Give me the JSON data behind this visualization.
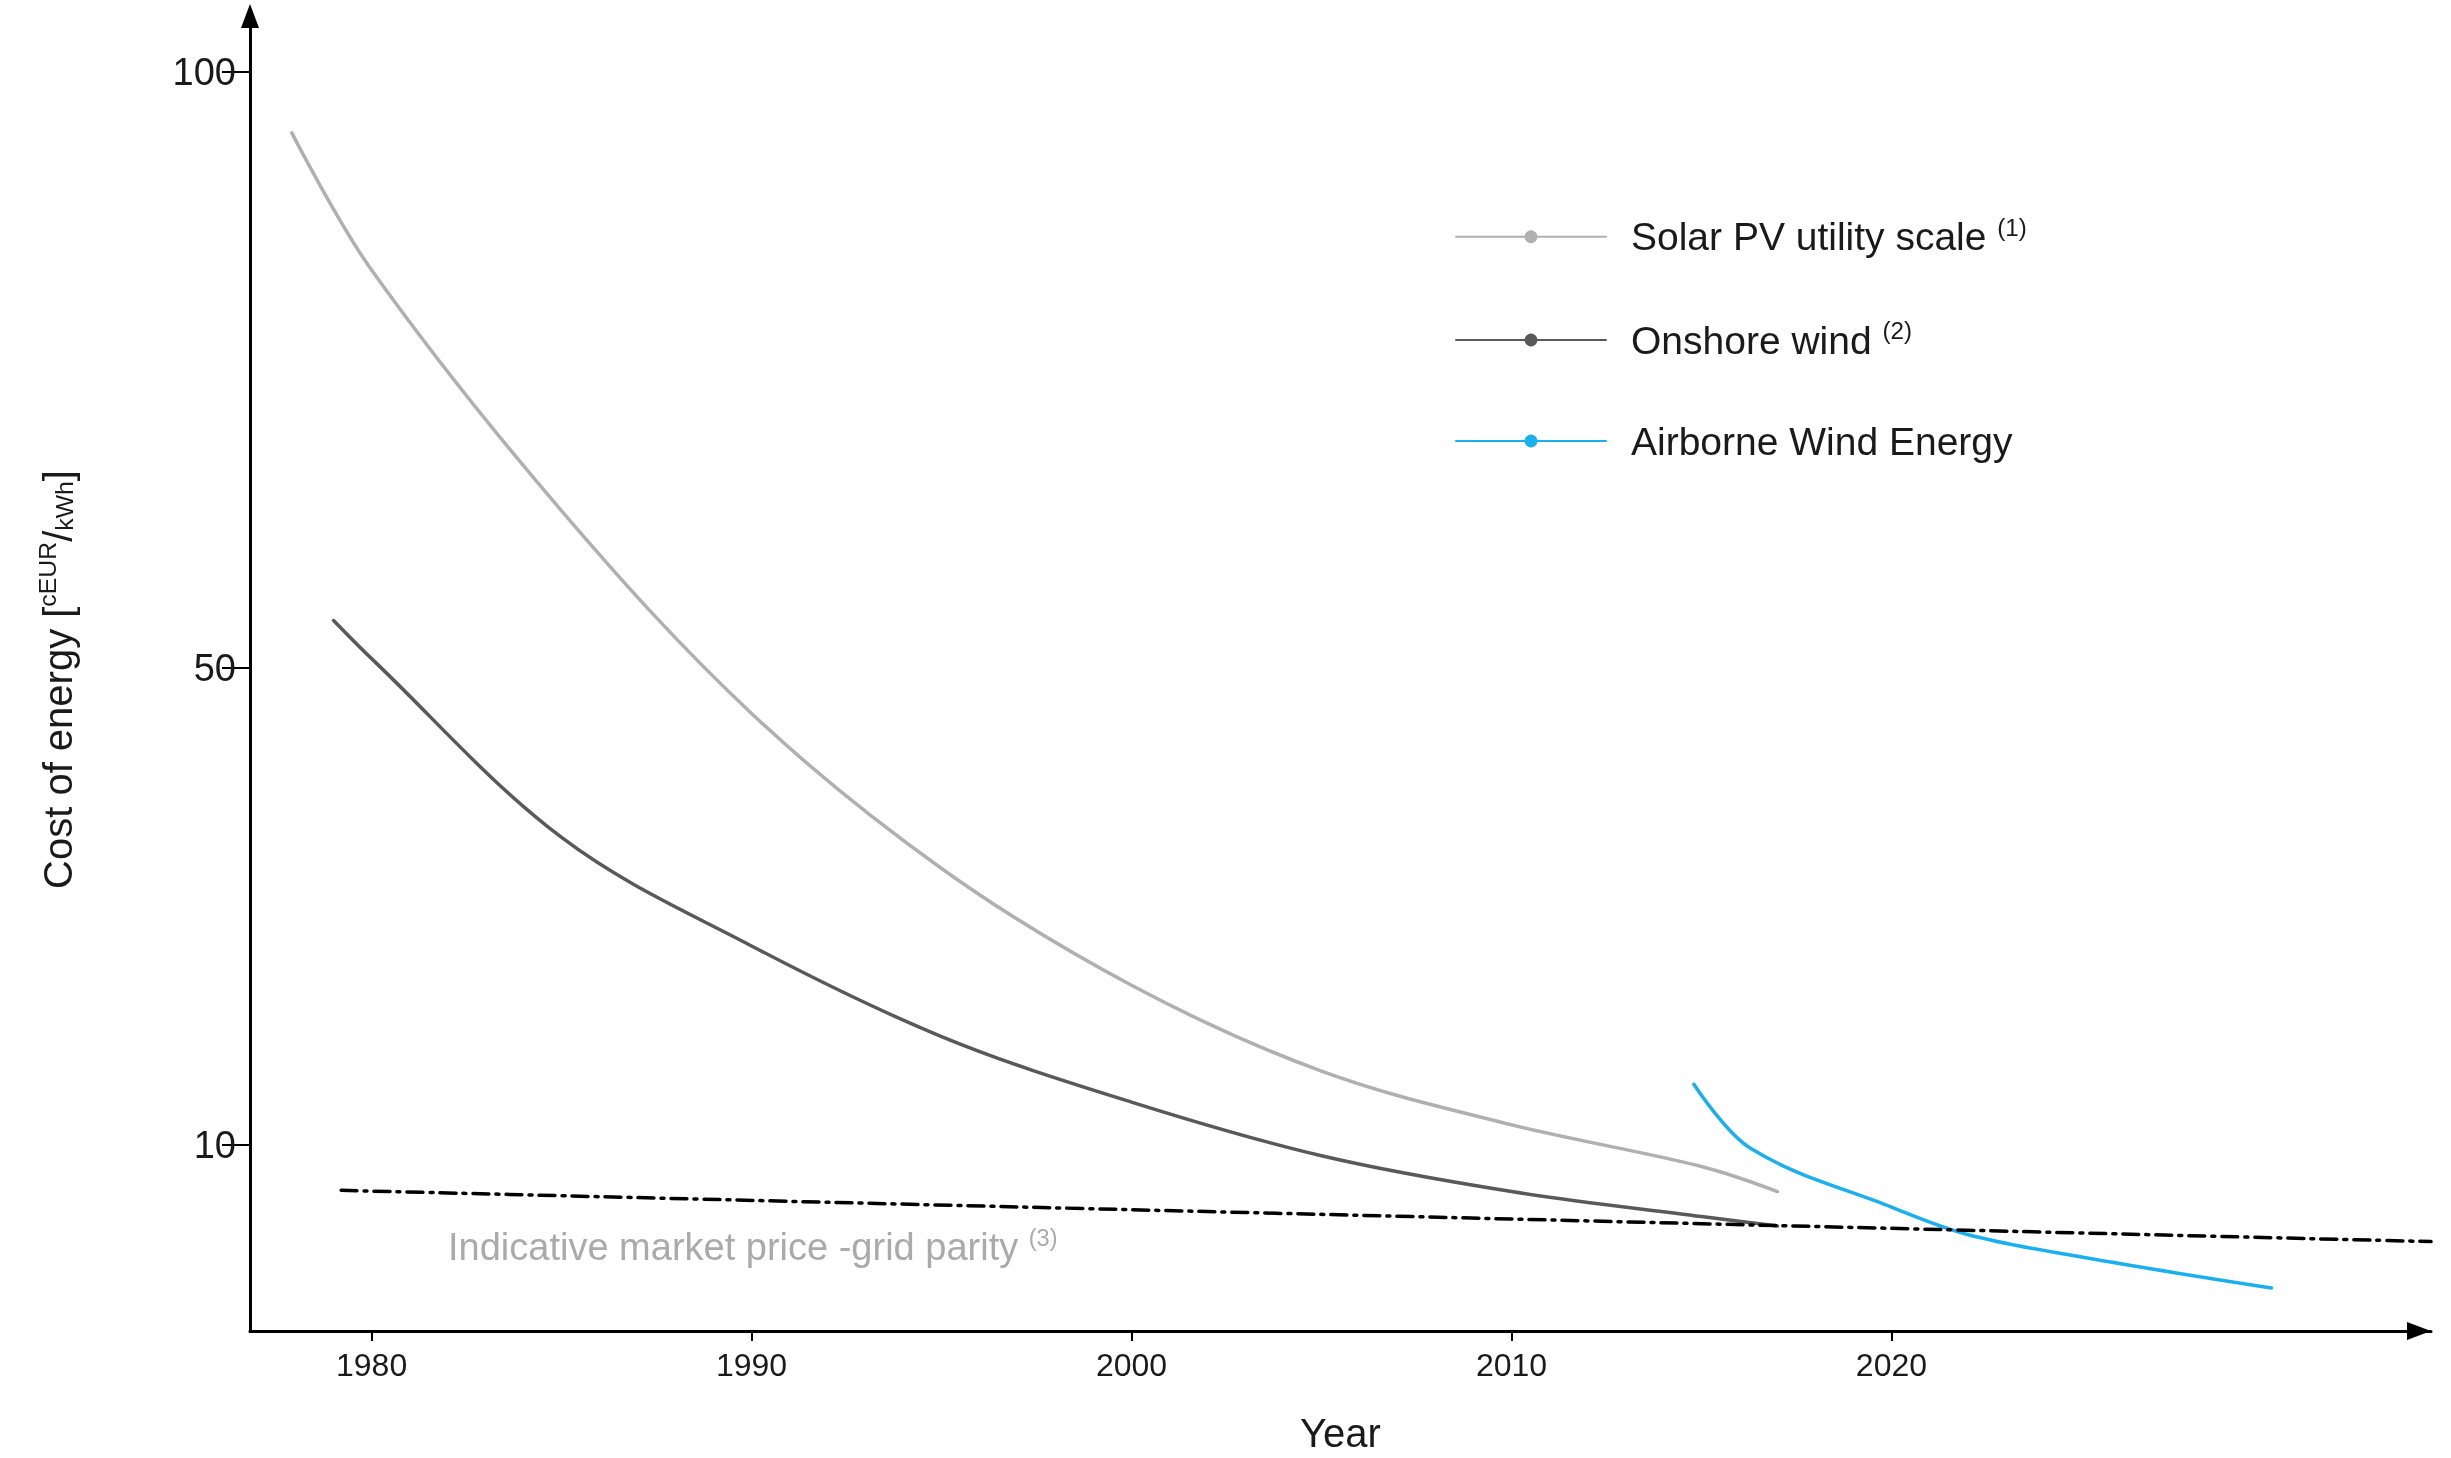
{
  "chart_data": {
    "type": "line",
    "xlabel": "Year",
    "ylabel": "Cost of energy [$^{cEUR}$/$_{kWh}$]",
    "xlim": [
      1976.8,
      2034.2
    ],
    "xticks": [
      1980,
      1990,
      2000,
      2010,
      2020
    ],
    "ylim": [
      -5.6,
      103.7
    ],
    "yticks": [
      10,
      50,
      100
    ],
    "grid": false,
    "legend": "top right",
    "marker": "none",
    "series": [
      {
        "name": "Solar PV utility scale $^{(1)}$",
        "color": "#b0b0b0",
        "x": [
          1977.9,
          1980,
          1985,
          1990,
          1995,
          2000,
          2005,
          2010,
          2015,
          2017
        ],
        "values": [
          94.9,
          83.4,
          63.2,
          46.2,
          33.2,
          23.4,
          16.2,
          11.7,
          8.2,
          6.1
        ]
      },
      {
        "name": "Onshore wind $^{(2)}$",
        "color": "#595959",
        "x": [
          1979,
          1980,
          1985,
          1990,
          1995,
          2000,
          2005,
          2010,
          2015,
          2017
        ],
        "values": [
          54.0,
          50.8,
          35.8,
          26.7,
          19.1,
          13.6,
          9.1,
          6.1,
          4.0,
          3.2
        ]
      },
      {
        "name": "Airborne Wind Energy",
        "color": "#1ab0ef",
        "x": [
          2014.8,
          2016.3,
          2020,
          2022,
          2025,
          2030
        ],
        "values": [
          15.1,
          9.7,
          4.8,
          2.5,
          0.6,
          -2.0
        ]
      },
      {
        "color": "#000000",
        "line_style": "dashdot",
        "x": [
          1979.2,
          2034.2
        ],
        "values": [
          6.2,
          1.9
        ]
      }
    ],
    "annotations": [
      "Indicative market price -grid parity $^{(3)}$"
    ]
  }
}
